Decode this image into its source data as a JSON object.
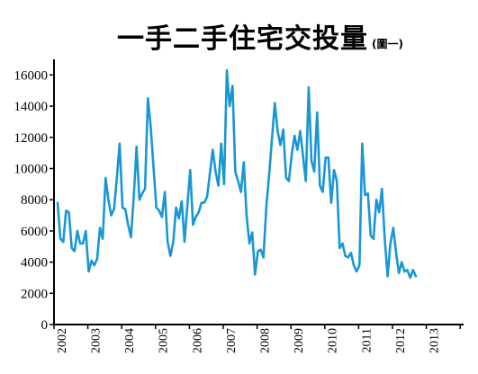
{
  "chart_data": {
    "type": "line",
    "title": "一手二手住宅交投量",
    "title_note": "(圖一)",
    "xlabel": "",
    "ylabel": "",
    "ylim": [
      0,
      17000
    ],
    "yticks": [
      0,
      2000,
      4000,
      6000,
      8000,
      10000,
      12000,
      14000,
      16000
    ],
    "ytick_labels": [
      "0",
      "2000",
      "4000",
      "6000",
      "8000",
      "10000",
      "12000",
      "14000",
      "16000"
    ],
    "xtick_labels": [
      "2002",
      "2003",
      "2004",
      "2005",
      "2006",
      "2007",
      "2008",
      "2009",
      "2010",
      "2011",
      "2012",
      "2013"
    ],
    "x_start_year": 2002,
    "grid": false,
    "line_color": "#1a96d4",
    "series": [
      {
        "values": [
          7800,
          5500,
          5300,
          7300,
          7200,
          4900,
          4700,
          6000,
          5200,
          5200,
          6000,
          3400,
          4100,
          3800,
          4200,
          6200,
          5500,
          9400,
          8000,
          7000,
          7400,
          9400,
          11600,
          7500,
          7400,
          6400,
          5600,
          8200,
          11400,
          8000,
          8400,
          8700,
          14500,
          12700,
          10100,
          7500,
          7300,
          6900,
          8500,
          5300,
          4400,
          5300,
          7500,
          6800,
          7900,
          5300,
          7600,
          9900,
          6400,
          6900,
          7200,
          7800,
          7800,
          8200,
          9700,
          11200,
          9800,
          8900,
          11600,
          9000,
          16300,
          14000,
          15300,
          9800,
          9200,
          8500,
          10400,
          7000,
          5200,
          5900,
          3200,
          4700,
          4800,
          4300,
          7600,
          9600,
          11900,
          14200,
          12400,
          11500,
          12500,
          9400,
          9200,
          10900,
          12100,
          11200,
          12400,
          10800,
          9200,
          15200,
          10500,
          9800,
          13600,
          8900,
          8500,
          10700,
          10700,
          7800,
          9900,
          9200,
          4900,
          5200,
          4400,
          4300,
          4600,
          3800,
          3400,
          3800,
          11600,
          8300,
          8400,
          5700,
          5500,
          8000,
          7200,
          8700,
          5400,
          3100,
          5200,
          6200,
          4600,
          3300,
          4000,
          3400,
          3500,
          3000,
          3500,
          3100
        ]
      }
    ]
  }
}
